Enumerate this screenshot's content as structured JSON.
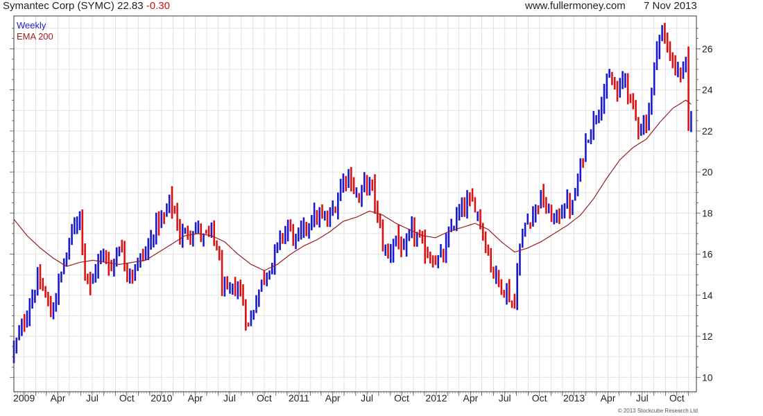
{
  "header": {
    "title": "Symantec Corp (SYMC)",
    "price": "22.83",
    "change": "-0.30",
    "website": "www.fullermoney.com",
    "date": "7 Nov 2013"
  },
  "copyright": "© 2013 Stockcube Research Ltd",
  "colors": {
    "up": "#1a1acc",
    "down": "#dd1111",
    "ema": "#9b1c1c",
    "grid": "#e2e2e2",
    "frame": "#333333"
  },
  "chart_data": {
    "type": "candlestick",
    "title": "Symantec Corp (SYMC)",
    "legend": [
      {
        "name": "Weekly",
        "color": "#1a1acc"
      },
      {
        "name": "EMA 200",
        "color": "#9b1c1c"
      }
    ],
    "legend_position": "top-left",
    "y_axis": {
      "side": "right",
      "ylim": [
        9.3,
        27.6
      ],
      "ticks": [
        10,
        12,
        14,
        16,
        18,
        20,
        22,
        24,
        26
      ]
    },
    "x_axis": {
      "start": "2008-12-05",
      "end": "2013-11-22",
      "ticks": [
        {
          "date": "2009-01-01",
          "label": "2009"
        },
        {
          "date": "2009-04-01",
          "label": "Apr"
        },
        {
          "date": "2009-07-01",
          "label": "Jul"
        },
        {
          "date": "2009-10-01",
          "label": "Oct"
        },
        {
          "date": "2010-01-01",
          "label": "2010"
        },
        {
          "date": "2010-04-01",
          "label": "Apr"
        },
        {
          "date": "2010-07-01",
          "label": "Jul"
        },
        {
          "date": "2010-10-01",
          "label": "Oct"
        },
        {
          "date": "2011-01-01",
          "label": "2011"
        },
        {
          "date": "2011-04-01",
          "label": "Apr"
        },
        {
          "date": "2011-07-01",
          "label": "Jul"
        },
        {
          "date": "2011-10-01",
          "label": "Oct"
        },
        {
          "date": "2012-01-01",
          "label": "2012"
        },
        {
          "date": "2012-04-01",
          "label": "Apr"
        },
        {
          "date": "2012-07-01",
          "label": "Jul"
        },
        {
          "date": "2012-10-01",
          "label": "Oct"
        },
        {
          "date": "2013-01-01",
          "label": "2013"
        },
        {
          "date": "2013-04-01",
          "label": "Apr"
        },
        {
          "date": "2013-07-01",
          "label": "Jul"
        },
        {
          "date": "2013-10-01",
          "label": "Oct"
        }
      ]
    },
    "grid": true,
    "price_path": [
      [
        "2008-12-05",
        11.4
      ],
      [
        "2008-12-26",
        12.4
      ],
      [
        "2009-01-16",
        13.6
      ],
      [
        "2009-02-06",
        14.7
      ],
      [
        "2009-02-27",
        14.0
      ],
      [
        "2009-03-13",
        13.0
      ],
      [
        "2009-04-03",
        14.6
      ],
      [
        "2009-04-24",
        16.0
      ],
      [
        "2009-05-15",
        17.5
      ],
      [
        "2009-05-29",
        18.0
      ],
      [
        "2009-06-12",
        15.2
      ],
      [
        "2009-06-26",
        14.3
      ],
      [
        "2009-07-10",
        15.4
      ],
      [
        "2009-07-31",
        16.0
      ],
      [
        "2009-08-21",
        15.3
      ],
      [
        "2009-09-11",
        16.6
      ],
      [
        "2009-09-25",
        15.5
      ],
      [
        "2009-10-16",
        15.1
      ],
      [
        "2009-11-06",
        15.8
      ],
      [
        "2009-11-27",
        16.3
      ],
      [
        "2009-12-18",
        17.5
      ],
      [
        "2010-01-08",
        17.7
      ],
      [
        "2010-01-22",
        18.6
      ],
      [
        "2010-02-05",
        18.0
      ],
      [
        "2010-02-19",
        16.9
      ],
      [
        "2010-03-12",
        17.1
      ],
      [
        "2010-04-02",
        17.3
      ],
      [
        "2010-04-23",
        16.8
      ],
      [
        "2010-05-14",
        17.0
      ],
      [
        "2010-05-28",
        16.4
      ],
      [
        "2010-06-11",
        14.5
      ],
      [
        "2010-06-25",
        14.0
      ],
      [
        "2010-07-16",
        14.4
      ],
      [
        "2010-07-30",
        14.2
      ],
      [
        "2010-08-13",
        13.0
      ],
      [
        "2010-08-20",
        12.4
      ],
      [
        "2010-09-10",
        13.9
      ],
      [
        "2010-10-01",
        15.0
      ],
      [
        "2010-10-22",
        15.6
      ],
      [
        "2010-11-12",
        16.7
      ],
      [
        "2010-12-03",
        17.4
      ],
      [
        "2010-12-24",
        16.6
      ],
      [
        "2011-01-14",
        17.2
      ],
      [
        "2011-02-04",
        17.8
      ],
      [
        "2011-02-25",
        17.8
      ],
      [
        "2011-03-18",
        17.6
      ],
      [
        "2011-04-08",
        18.4
      ],
      [
        "2011-04-29",
        19.7
      ],
      [
        "2011-05-13",
        19.9
      ],
      [
        "2011-05-27",
        19.2
      ],
      [
        "2011-06-10",
        18.6
      ],
      [
        "2011-06-24",
        19.5
      ],
      [
        "2011-07-15",
        19.2
      ],
      [
        "2011-07-29",
        17.8
      ],
      [
        "2011-08-12",
        16.5
      ],
      [
        "2011-08-26",
        15.9
      ],
      [
        "2011-09-16",
        16.9
      ],
      [
        "2011-10-07",
        16.0
      ],
      [
        "2011-10-28",
        17.2
      ],
      [
        "2011-11-18",
        16.6
      ],
      [
        "2011-12-09",
        16.0
      ],
      [
        "2011-12-30",
        15.7
      ],
      [
        "2012-01-20",
        15.9
      ],
      [
        "2012-02-10",
        17.3
      ],
      [
        "2012-03-02",
        18.0
      ],
      [
        "2012-03-23",
        18.5
      ],
      [
        "2012-04-13",
        18.4
      ],
      [
        "2012-04-27",
        17.6
      ],
      [
        "2012-05-11",
        16.5
      ],
      [
        "2012-05-25",
        15.5
      ],
      [
        "2012-06-15",
        14.6
      ],
      [
        "2012-07-06",
        14.2
      ],
      [
        "2012-07-27",
        13.4
      ],
      [
        "2012-08-03",
        15.5
      ],
      [
        "2012-08-24",
        17.5
      ],
      [
        "2012-09-14",
        18.0
      ],
      [
        "2012-10-05",
        18.8
      ],
      [
        "2012-10-26",
        17.9
      ],
      [
        "2012-11-16",
        17.7
      ],
      [
        "2012-12-07",
        18.5
      ],
      [
        "2012-12-28",
        18.3
      ],
      [
        "2013-01-11",
        19.6
      ],
      [
        "2013-02-01",
        21.5
      ],
      [
        "2013-02-22",
        22.5
      ],
      [
        "2013-03-15",
        23.6
      ],
      [
        "2013-04-05",
        24.5
      ],
      [
        "2013-04-26",
        23.8
      ],
      [
        "2013-05-17",
        24.7
      ],
      [
        "2013-05-31",
        23.4
      ],
      [
        "2013-06-21",
        22.3
      ],
      [
        "2013-07-12",
        22.4
      ],
      [
        "2013-07-26",
        23.9
      ],
      [
        "2013-08-09",
        26.3
      ],
      [
        "2013-08-23",
        26.8
      ],
      [
        "2013-09-06",
        26.0
      ],
      [
        "2013-09-27",
        25.1
      ],
      [
        "2013-10-11",
        24.7
      ],
      [
        "2013-10-25",
        25.3
      ],
      [
        "2013-11-01",
        22.1
      ],
      [
        "2013-11-08",
        22.83
      ]
    ],
    "ema_200_path": [
      [
        "2008-12-05",
        17.7
      ],
      [
        "2009-01-09",
        16.9
      ],
      [
        "2009-02-13",
        16.3
      ],
      [
        "2009-03-20",
        15.8
      ],
      [
        "2009-04-24",
        15.4
      ],
      [
        "2009-05-29",
        15.6
      ],
      [
        "2009-07-03",
        15.7
      ],
      [
        "2009-08-07",
        15.6
      ],
      [
        "2009-09-11",
        15.5
      ],
      [
        "2009-10-16",
        15.6
      ],
      [
        "2009-11-20",
        15.7
      ],
      [
        "2009-12-25",
        16.1
      ],
      [
        "2010-01-29",
        16.5
      ],
      [
        "2010-03-05",
        16.9
      ],
      [
        "2010-04-09",
        17.0
      ],
      [
        "2010-05-14",
        16.9
      ],
      [
        "2010-06-18",
        16.6
      ],
      [
        "2010-07-23",
        16.0
      ],
      [
        "2010-08-27",
        15.5
      ],
      [
        "2010-10-01",
        15.2
      ],
      [
        "2010-11-05",
        15.5
      ],
      [
        "2010-12-10",
        16.0
      ],
      [
        "2011-01-14",
        16.4
      ],
      [
        "2011-02-18",
        16.7
      ],
      [
        "2011-03-25",
        17.1
      ],
      [
        "2011-04-29",
        17.6
      ],
      [
        "2011-06-03",
        17.8
      ],
      [
        "2011-07-08",
        18.1
      ],
      [
        "2011-08-12",
        17.9
      ],
      [
        "2011-09-16",
        17.5
      ],
      [
        "2011-10-21",
        17.2
      ],
      [
        "2011-11-25",
        16.9
      ],
      [
        "2011-12-30",
        16.8
      ],
      [
        "2012-02-03",
        17.1
      ],
      [
        "2012-03-09",
        17.3
      ],
      [
        "2012-04-13",
        17.5
      ],
      [
        "2012-05-18",
        17.2
      ],
      [
        "2012-06-22",
        16.6
      ],
      [
        "2012-07-27",
        16.1
      ],
      [
        "2012-08-31",
        16.3
      ],
      [
        "2012-10-05",
        16.6
      ],
      [
        "2012-11-09",
        17.0
      ],
      [
        "2012-12-14",
        17.4
      ],
      [
        "2013-01-18",
        17.9
      ],
      [
        "2013-02-22",
        18.7
      ],
      [
        "2013-03-29",
        19.7
      ],
      [
        "2013-05-03",
        20.6
      ],
      [
        "2013-06-07",
        21.2
      ],
      [
        "2013-07-12",
        21.6
      ],
      [
        "2013-08-16",
        22.4
      ],
      [
        "2013-09-20",
        23.1
      ],
      [
        "2013-10-25",
        23.5
      ],
      [
        "2013-11-08",
        23.3
      ]
    ]
  }
}
